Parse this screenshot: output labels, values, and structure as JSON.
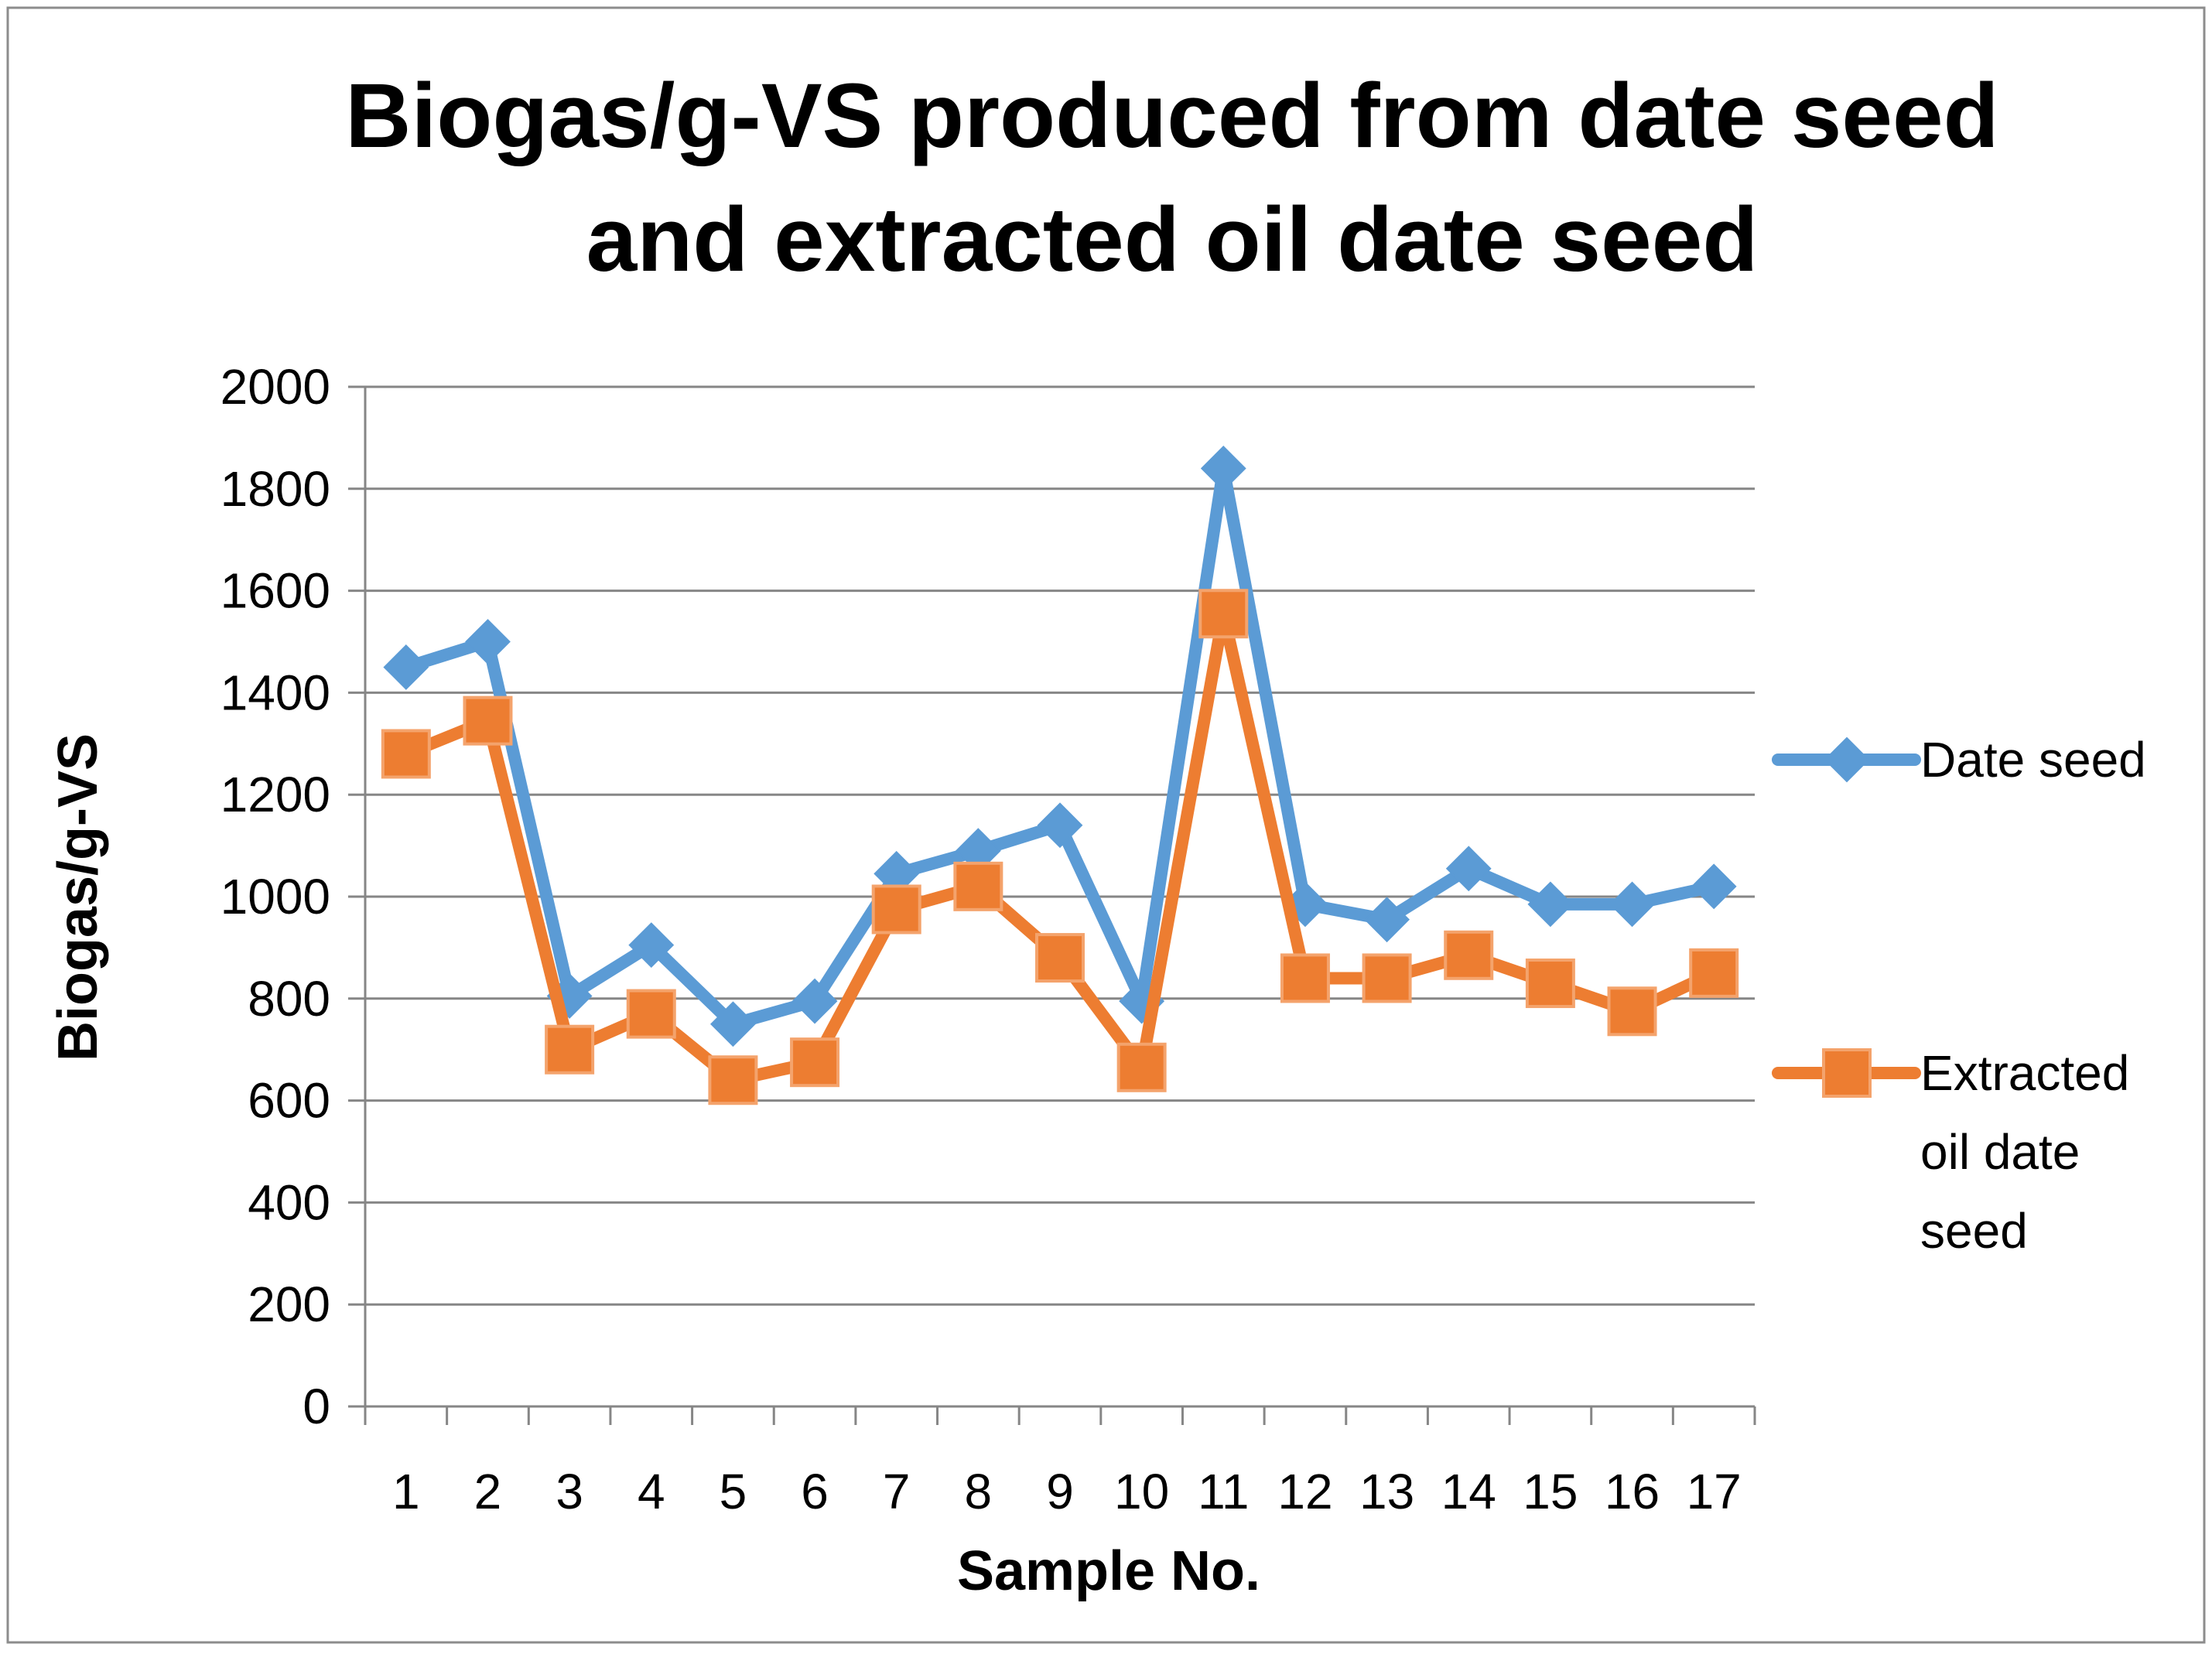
{
  "chart_data": {
    "type": "line",
    "title_lines": [
      "Biogas/g-VS produced from date seed",
      "and extracted oil date seed"
    ],
    "xlabel": "Sample No.",
    "ylabel": "Biogas/g-VS",
    "ylim": [
      0,
      2000
    ],
    "yticks": [
      0,
      200,
      400,
      600,
      800,
      1000,
      1200,
      1400,
      1600,
      1800,
      2000
    ],
    "categories": [
      "1",
      "2",
      "3",
      "4",
      "5",
      "6",
      "7",
      "8",
      "9",
      "10",
      "11",
      "12",
      "13",
      "14",
      "15",
      "16",
      "17"
    ],
    "grid": true,
    "legend_position": "right",
    "series": [
      {
        "name": "Date seed",
        "legend_lines": [
          "Date seed"
        ],
        "color": "#5B9BD5",
        "marker": "diamond",
        "values": [
          1450,
          1500,
          805,
          905,
          750,
          795,
          1045,
          1090,
          1140,
          795,
          1840,
          985,
          955,
          1055,
          985,
          985,
          1020
        ]
      },
      {
        "name": "Extracted oil date seed",
        "legend_lines": [
          "Extracted",
          "oil date",
          "seed"
        ],
        "color": "#ED7D31",
        "marker": "square",
        "values": [
          1280,
          1345,
          700,
          770,
          640,
          675,
          975,
          1020,
          880,
          665,
          1555,
          840,
          840,
          885,
          830,
          775,
          850
        ]
      }
    ]
  }
}
